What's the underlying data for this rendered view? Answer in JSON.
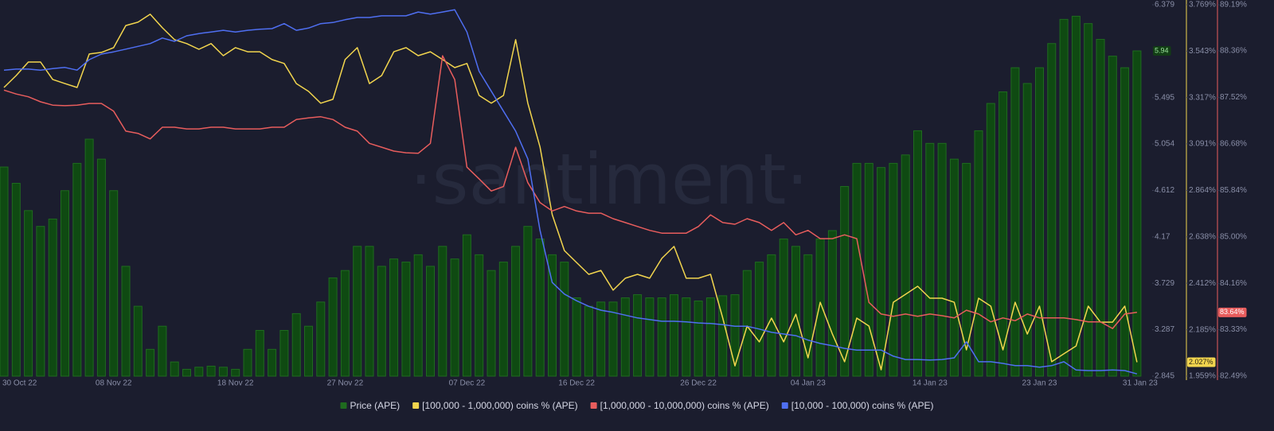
{
  "chart_data": {
    "type": "combo",
    "watermark": "·santiment·",
    "categories": [
      "30 Oct 22",
      null,
      null,
      null,
      null,
      null,
      null,
      null,
      null,
      "08 Nov 22",
      null,
      null,
      null,
      null,
      null,
      null,
      null,
      null,
      null,
      "18 Nov 22",
      null,
      null,
      null,
      null,
      null,
      null,
      null,
      null,
      "27 Nov 22",
      null,
      null,
      null,
      null,
      null,
      null,
      null,
      null,
      null,
      "07 Dec 22",
      null,
      null,
      null,
      null,
      null,
      null,
      null,
      null,
      "16 Dec 22",
      null,
      null,
      null,
      null,
      null,
      null,
      null,
      null,
      null,
      "26 Dec 22",
      null,
      null,
      null,
      null,
      null,
      null,
      null,
      null,
      "04 Jan 23",
      null,
      null,
      null,
      null,
      null,
      null,
      null,
      null,
      null,
      "14 Jan 23",
      null,
      null,
      null,
      null,
      null,
      null,
      null,
      null,
      "23 Jan 23",
      null,
      null,
      null,
      null,
      null,
      null,
      null,
      "31 Jan 23"
    ],
    "ylim": [
      2.845,
      6.379
    ],
    "yticks": [
      6.379,
      5.495,
      5.054,
      4.612,
      4.17,
      3.729,
      3.287,
      2.845
    ],
    "y2lim": [
      1.959,
      3.769
    ],
    "y2ticks": [
      {
        "value": 3.769,
        "label": "3.769%"
      },
      {
        "value": 3.543,
        "label": "3.543%"
      },
      {
        "value": 3.317,
        "label": "3.317%"
      },
      {
        "value": 3.091,
        "label": "3.091%"
      },
      {
        "value": 2.864,
        "label": "2.864%"
      },
      {
        "value": 2.638,
        "label": "2.638%"
      },
      {
        "value": 2.412,
        "label": "2.412%"
      },
      {
        "value": 2.185,
        "label": "2.185%"
      },
      {
        "value": 1.959,
        "label": "1.959%"
      }
    ],
    "y3lim": [
      82.49,
      89.19
    ],
    "y3ticks": [
      {
        "value": 89.19,
        "label": "89.19%"
      },
      {
        "value": 88.36,
        "label": "88.36%"
      },
      {
        "value": 87.52,
        "label": "87.52%"
      },
      {
        "value": 86.68,
        "label": "86.68%"
      },
      {
        "value": 85.84,
        "label": "85.84%"
      },
      {
        "value": 85,
        "label": "85.00%"
      },
      {
        "value": 84.16,
        "label": "84.16%"
      },
      {
        "value": 83.33,
        "label": "83.33%"
      },
      {
        "value": 82.49,
        "label": "82.49%"
      }
    ],
    "grid": false,
    "series": [
      {
        "name": "Price (APE)",
        "type": "bar",
        "axis": "y",
        "color": "#1f6b1f",
        "last_value_label": "5.94",
        "values": [
          4.835,
          4.68,
          4.42,
          4.27,
          4.34,
          4.61,
          4.87,
          5.1,
          4.91,
          4.61,
          3.89,
          3.51,
          3.1,
          3.32,
          2.98,
          2.91,
          2.93,
          2.94,
          2.93,
          2.91,
          3.1,
          3.28,
          3.1,
          3.28,
          3.44,
          3.32,
          3.55,
          3.78,
          3.85,
          4.08,
          4.08,
          3.89,
          3.96,
          3.93,
          4.0,
          3.89,
          4.08,
          3.96,
          4.19,
          4.0,
          3.85,
          3.93,
          4.08,
          4.27,
          4.15,
          4.0,
          3.93,
          3.59,
          3.51,
          3.55,
          3.55,
          3.59,
          3.62,
          3.59,
          3.59,
          3.62,
          3.59,
          3.56,
          3.59,
          3.61,
          3.62,
          3.85,
          3.93,
          4.0,
          4.15,
          4.08,
          4.0,
          4.15,
          4.23,
          4.65,
          4.87,
          4.87,
          4.83,
          4.87,
          4.95,
          5.18,
          5.06,
          5.06,
          4.91,
          4.87,
          5.18,
          5.44,
          5.55,
          5.78,
          5.63,
          5.78,
          6.01,
          6.24,
          6.27,
          6.2,
          6.05,
          5.89,
          5.78,
          5.94
        ]
      },
      {
        "name": "[100,000  - 1,000,000) coins % (APE)",
        "type": "line",
        "axis": "y2",
        "color": "#f2d54e",
        "last_value_label": "2.027%",
        "values": [
          3.366,
          3.424,
          3.49,
          3.49,
          3.405,
          3.385,
          3.366,
          3.529,
          3.537,
          3.56,
          3.668,
          3.684,
          3.723,
          3.657,
          3.599,
          3.58,
          3.552,
          3.58,
          3.521,
          3.56,
          3.54,
          3.54,
          3.502,
          3.483,
          3.385,
          3.347,
          3.289,
          3.308,
          3.502,
          3.56,
          3.385,
          3.424,
          3.54,
          3.56,
          3.521,
          3.54,
          3.502,
          3.463,
          3.483,
          3.327,
          3.289,
          3.327,
          3.599,
          3.289,
          3.076,
          2.746,
          2.571,
          2.513,
          2.455,
          2.474,
          2.378,
          2.436,
          2.455,
          2.436,
          2.533,
          2.591,
          2.436,
          2.436,
          2.455,
          2.242,
          2.009,
          2.203,
          2.126,
          2.242,
          2.126,
          2.261,
          2.048,
          2.319,
          2.164,
          2.029,
          2.242,
          2.203,
          1.99,
          2.319,
          2.358,
          2.397,
          2.339,
          2.339,
          2.319,
          2.087,
          2.339,
          2.3,
          2.087,
          2.319,
          2.164,
          2.3,
          2.029,
          2.068,
          2.106,
          2.3,
          2.222,
          2.222,
          2.3,
          2.027
        ]
      },
      {
        "name": "[1,000,000 - 10,000,000) coins % (APE)",
        "type": "line",
        "axis": "y3",
        "color": "#e85d5d",
        "last_value_label": "83.64%",
        "values": [
          87.65,
          87.58,
          87.53,
          87.44,
          87.38,
          87.37,
          87.38,
          87.41,
          87.41,
          87.27,
          86.91,
          86.87,
          86.77,
          86.98,
          86.98,
          86.95,
          86.95,
          86.98,
          86.98,
          86.95,
          86.95,
          86.95,
          86.98,
          86.98,
          87.12,
          87.15,
          87.17,
          87.12,
          86.98,
          86.91,
          86.69,
          86.62,
          86.55,
          86.52,
          86.51,
          86.69,
          88.27,
          87.84,
          86.26,
          86.05,
          85.83,
          85.91,
          86.62,
          85.98,
          85.62,
          85.47,
          85.55,
          85.47,
          85.43,
          85.43,
          85.33,
          85.26,
          85.19,
          85.12,
          85.07,
          85.07,
          85.07,
          85.19,
          85.4,
          85.26,
          85.23,
          85.33,
          85.26,
          85.12,
          85.26,
          85.04,
          85.12,
          84.97,
          84.97,
          85.04,
          84.97,
          83.82,
          83.61,
          83.57,
          83.61,
          83.57,
          83.61,
          83.58,
          83.54,
          83.68,
          83.61,
          83.47,
          83.54,
          83.49,
          83.61,
          83.54,
          83.54,
          83.54,
          83.51,
          83.47,
          83.47,
          83.35,
          83.61,
          83.64
        ]
      },
      {
        "name": "[10,000 - 100,000) coins % (APE)",
        "type": "line",
        "axis": "y3",
        "color": "#4f6ff2",
        "values": [
          88.01,
          88.03,
          88.03,
          88.01,
          88.04,
          88.06,
          88.01,
          88.2,
          88.3,
          88.34,
          88.39,
          88.44,
          88.49,
          88.59,
          88.53,
          88.63,
          88.67,
          88.7,
          88.73,
          88.7,
          88.73,
          88.75,
          88.76,
          88.85,
          88.73,
          88.77,
          88.85,
          88.87,
          88.92,
          88.96,
          88.96,
          88.99,
          88.99,
          88.99,
          89.06,
          89.02,
          89.06,
          89.1,
          88.7,
          87.99,
          87.63,
          87.27,
          86.91,
          86.41,
          85.12,
          84.18,
          83.97,
          83.85,
          83.75,
          83.68,
          83.64,
          83.59,
          83.54,
          83.51,
          83.48,
          83.48,
          83.47,
          83.45,
          83.44,
          83.42,
          83.39,
          83.39,
          83.34,
          83.28,
          83.25,
          83.22,
          83.14,
          83.08,
          83.04,
          82.99,
          82.96,
          82.96,
          82.96,
          82.85,
          82.79,
          82.79,
          82.78,
          82.79,
          82.82,
          83.11,
          82.75,
          82.75,
          82.72,
          82.68,
          82.68,
          82.65,
          82.68,
          82.75,
          82.6,
          82.59,
          82.59,
          82.6,
          82.59,
          82.53
        ]
      }
    ]
  }
}
